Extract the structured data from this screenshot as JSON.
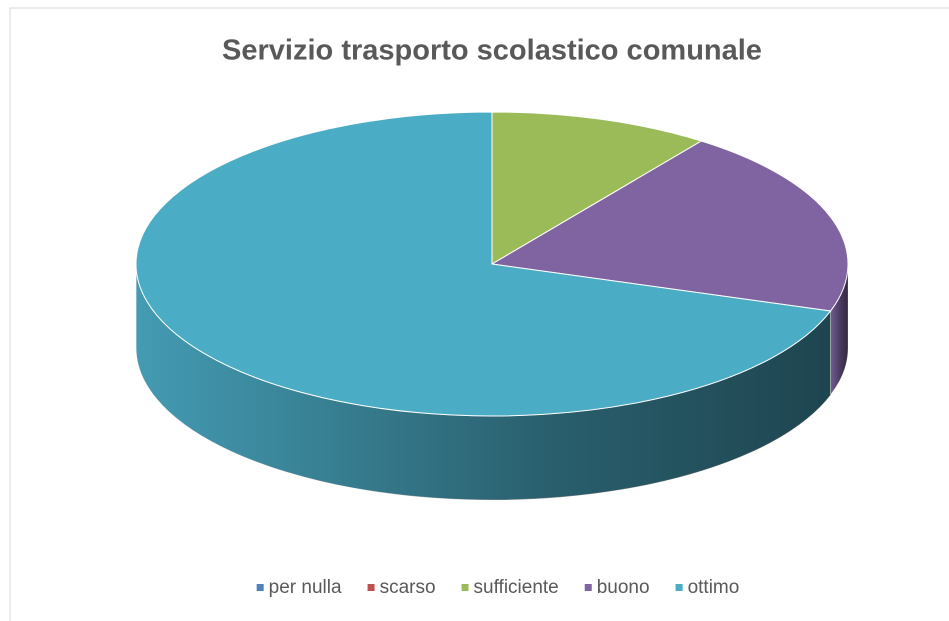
{
  "chart_data": {
    "type": "pie3d",
    "title": "Servizio trasporto scolastico comunale",
    "categories": [
      "per nulla",
      "scarso",
      "sufficiente",
      "buono",
      "ottimo"
    ],
    "values": [
      0,
      0,
      10,
      20,
      70
    ],
    "colors": [
      "#4f81bd",
      "#c0504d",
      "#9bbb59",
      "#8064a2",
      "#4bacc6"
    ],
    "legend": "bottom"
  }
}
